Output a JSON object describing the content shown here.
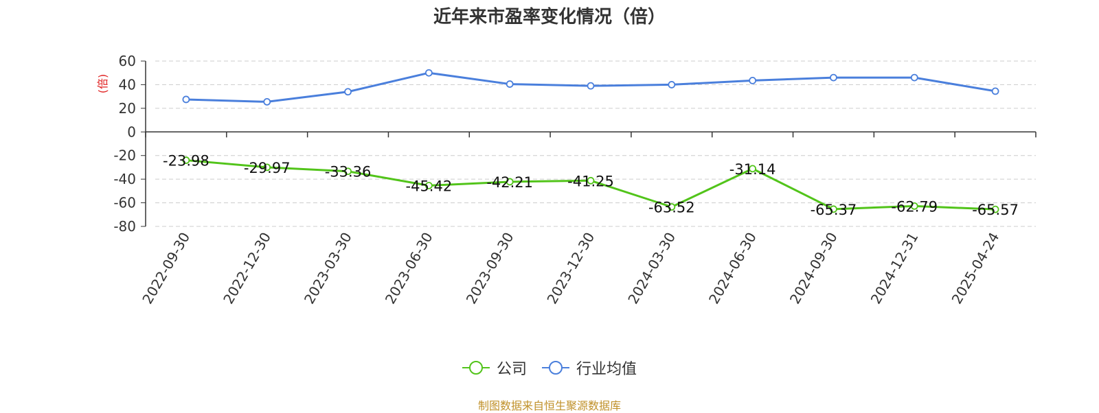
{
  "chart_data": {
    "type": "line",
    "title": "近年来市盈率变化情况（倍）",
    "ylabel": "(倍)",
    "x": [
      "2022-09-30",
      "2022-12-30",
      "2023-03-30",
      "2023-06-30",
      "2023-09-30",
      "2023-12-30",
      "2024-03-30",
      "2024-06-30",
      "2024-09-30",
      "2024-12-31",
      "2025-04-24"
    ],
    "ylim": [
      -80,
      60
    ],
    "yticks": [
      60,
      40,
      20,
      0,
      -20,
      -40,
      -60,
      -80
    ],
    "grid": true,
    "legend_position": "bottom-center",
    "series": [
      {
        "name": "公司",
        "color": "#52c41a",
        "values": [
          -23.98,
          -29.97,
          -33.36,
          -45.42,
          -42.21,
          -41.25,
          -63.52,
          -31.14,
          -65.37,
          -62.79,
          -65.57
        ],
        "labels": [
          "-23.98",
          "-29.97",
          "-33.36",
          "-45.42",
          "-42.21",
          "-41.25",
          "-63.52",
          "-31.14",
          "-65.37",
          "-62.79",
          "-65.57"
        ]
      },
      {
        "name": "行业均值",
        "color": "#4a7fdc",
        "values": [
          27.5,
          25.5,
          34,
          50,
          40.5,
          39,
          40,
          43.5,
          46,
          46,
          34.5
        ]
      }
    ]
  },
  "source": "制图数据来自恒生聚源数据库"
}
